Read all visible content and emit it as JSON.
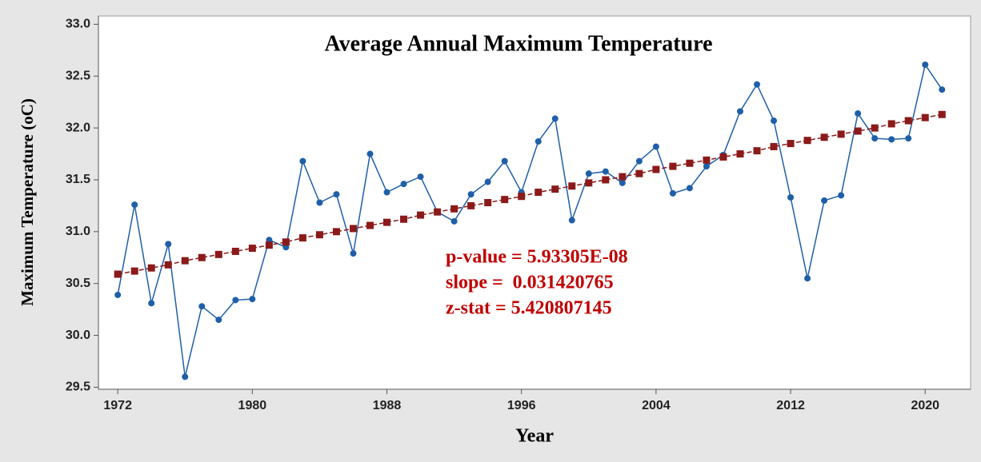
{
  "chart_data": {
    "type": "line",
    "title": "Average Annual Maximum Temperature",
    "x_label": "Year",
    "y_label": "Maximum Temperature (oC)",
    "annotations": [
      "p-value = 5.93305E-08",
      "slope =  0.031420765",
      "z-stat = 5.420807145"
    ],
    "x": [
      1972,
      1973,
      1974,
      1975,
      1976,
      1977,
      1978,
      1979,
      1980,
      1981,
      1982,
      1983,
      1984,
      1985,
      1986,
      1987,
      1988,
      1989,
      1990,
      1991,
      1992,
      1993,
      1994,
      1995,
      1996,
      1997,
      1998,
      1999,
      2000,
      2001,
      2002,
      2003,
      2004,
      2005,
      2006,
      2007,
      2008,
      2009,
      2010,
      2011,
      2012,
      2013,
      2014,
      2015,
      2016,
      2017,
      2018,
      2019,
      2020,
      2021
    ],
    "series": [
      {
        "color": "#1f5fa8",
        "marker": "circle",
        "dashed": false,
        "values": [
          30.39,
          31.26,
          30.31,
          30.88,
          29.6,
          30.28,
          30.15,
          30.34,
          30.35,
          30.92,
          30.85,
          31.68,
          31.28,
          31.36,
          30.79,
          31.75,
          31.38,
          31.46,
          31.53,
          31.19,
          31.1,
          31.36,
          31.48,
          31.68,
          31.38,
          31.87,
          32.09,
          31.11,
          31.56,
          31.58,
          31.47,
          31.68,
          31.82,
          31.37,
          31.42,
          31.63,
          31.74,
          32.16,
          32.42,
          32.07,
          31.33,
          30.55,
          31.3,
          31.35,
          32.14,
          31.9,
          31.89,
          31.9,
          32.61,
          32.37
        ]
      },
      {
        "color": "#8b1a1a",
        "marker": "square",
        "dashed": true,
        "values": [
          30.59,
          30.62,
          30.65,
          30.68,
          30.72,
          30.75,
          30.78,
          30.81,
          30.84,
          30.87,
          30.9,
          30.94,
          30.97,
          31.0,
          31.03,
          31.06,
          31.09,
          31.12,
          31.16,
          31.19,
          31.22,
          31.25,
          31.28,
          31.31,
          31.34,
          31.38,
          31.41,
          31.44,
          31.47,
          31.5,
          31.53,
          31.56,
          31.6,
          31.63,
          31.66,
          31.69,
          31.72,
          31.75,
          31.78,
          31.82,
          31.85,
          31.88,
          31.91,
          31.94,
          31.97,
          32.0,
          32.04,
          32.07,
          32.1,
          32.13
        ]
      }
    ],
    "xlim": [
      1970.85,
      2022.7
    ],
    "ylim": [
      29.48,
      33.08
    ],
    "xticks": [
      1972,
      1980,
      1988,
      1996,
      2004,
      2012,
      2020
    ],
    "yticks": [
      29.5,
      {
        "value": 30,
        "label": "30.0"
      },
      30.5,
      {
        "value": 31,
        "label": "31.0"
      },
      31.5,
      {
        "value": 32,
        "label": "32.0"
      },
      32.5,
      {
        "value": 33,
        "label": "33.0"
      }
    ],
    "annotation_color": "#c00000",
    "grid": false
  }
}
